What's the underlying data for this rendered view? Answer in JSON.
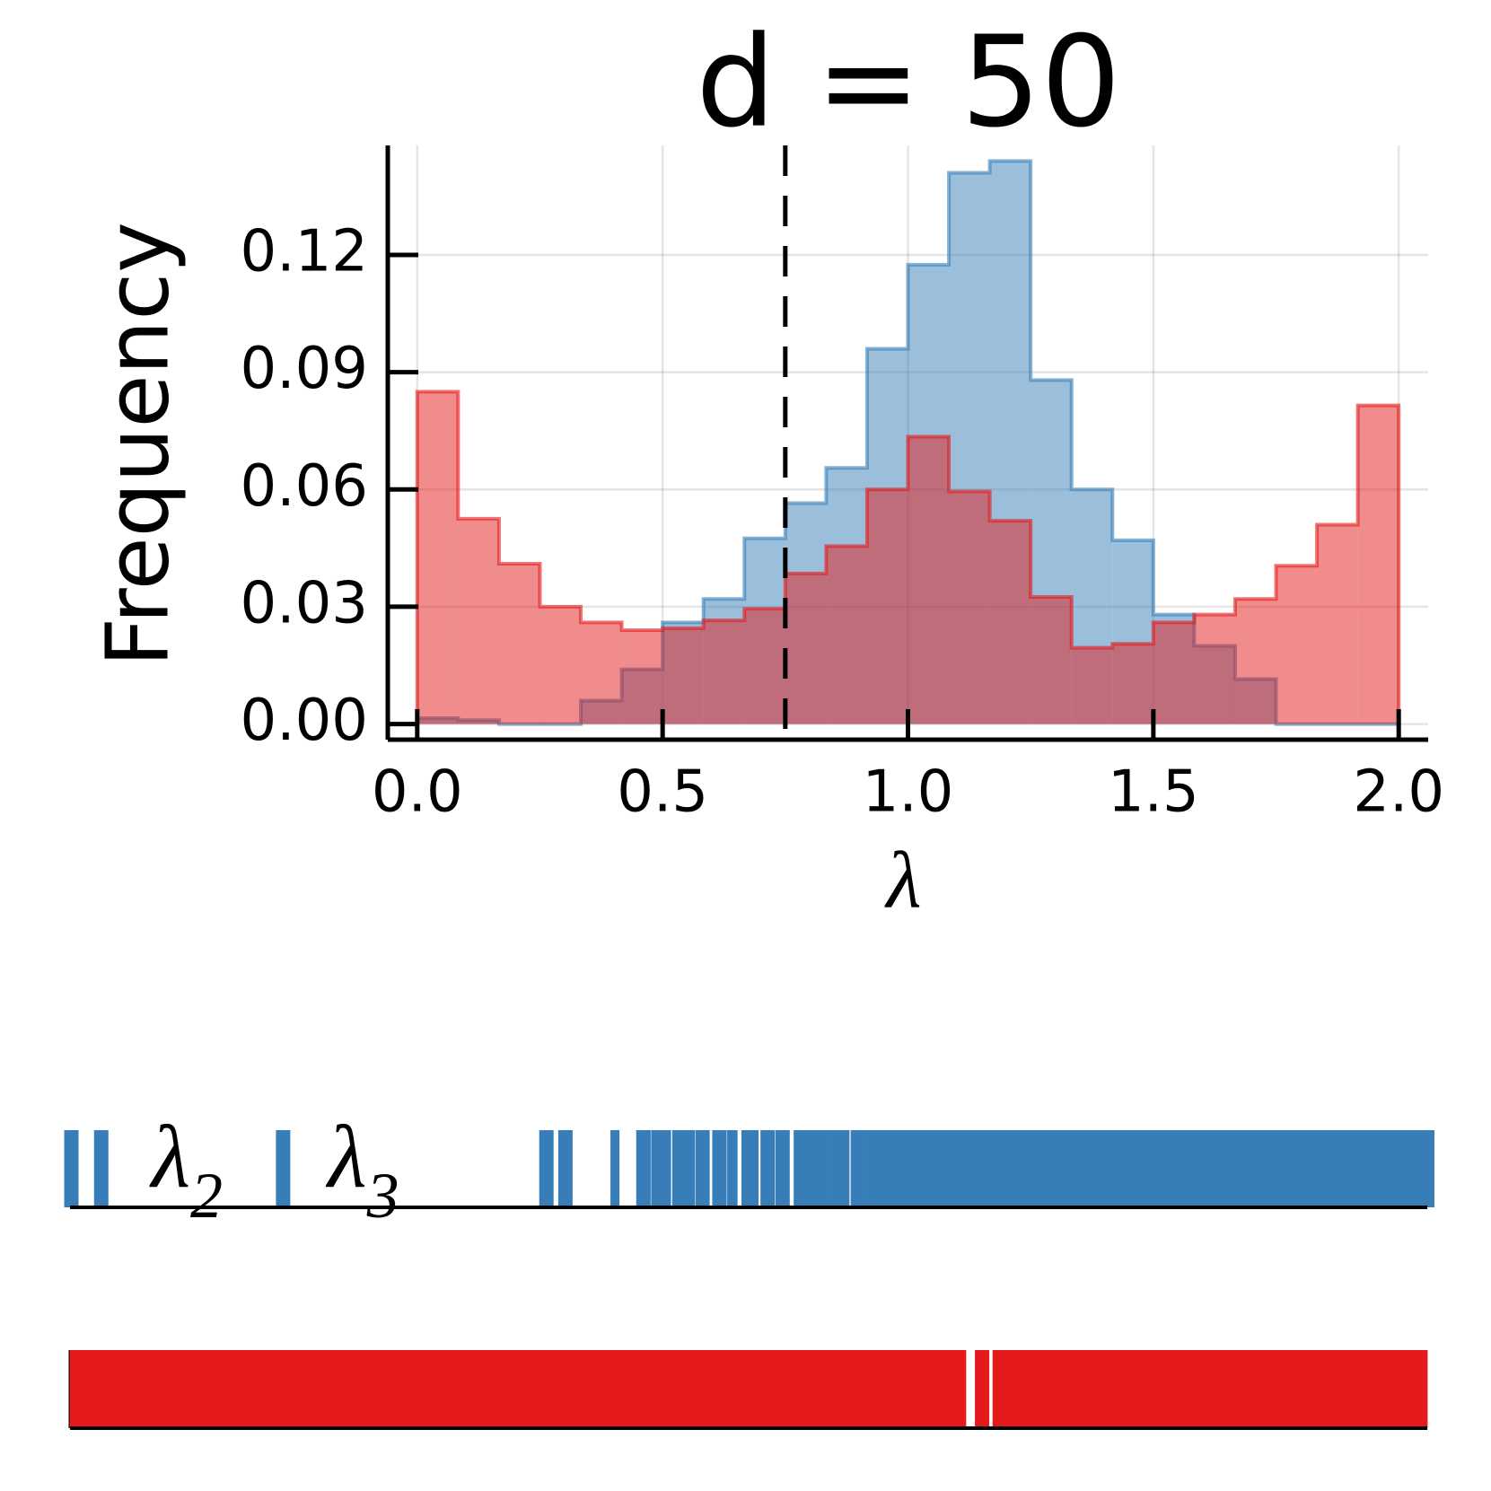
{
  "chart_data": {
    "type": "histogram",
    "title": "d = 50",
    "xlabel": "λ",
    "ylabel": "Frequency",
    "bins": [
      0,
      0.08333,
      0.16667,
      0.25,
      0.33333,
      0.41667,
      0.5,
      0.58333,
      0.66667,
      0.75,
      0.83333,
      0.91667,
      1,
      1.08333,
      1.16667,
      1.25,
      1.33333,
      1.41667,
      1.5,
      1.58333,
      1.66667,
      1.75,
      1.83333,
      1.91667,
      2
    ],
    "series": [
      {
        "color": "#377eb8",
        "values": [
          0.0015,
          0.001,
          0,
          0,
          0.006,
          0.014,
          0.026,
          0.032,
          0.0475,
          0.0565,
          0.0655,
          0.096,
          0.1175,
          0.141,
          0.144,
          0.088,
          0.06,
          0.047,
          0.028,
          0.02,
          0.0115,
          0,
          0,
          0
        ]
      },
      {
        "color": "#e41a1c",
        "values": [
          0.085,
          0.0525,
          0.041,
          0.03,
          0.026,
          0.024,
          0.0245,
          0.0265,
          0.0295,
          0.0385,
          0.0455,
          0.06,
          0.0735,
          0.0595,
          0.052,
          0.0325,
          0.0195,
          0.0205,
          0.026,
          0.028,
          0.032,
          0.0405,
          0.051,
          0.0815
        ]
      }
    ],
    "vline": 0.75,
    "xlim": [
      -0.06,
      2.06
    ],
    "ylim": [
      -0.004,
      0.148
    ],
    "xticks": [
      {
        "value": 0,
        "label": "0.0"
      },
      0.5,
      {
        "value": 1,
        "label": "1.0"
      },
      1.5,
      {
        "value": 2,
        "label": "2.0"
      }
    ],
    "yticks": [
      {
        "value": 0,
        "label": "0.00"
      },
      0.03,
      0.06,
      0.09,
      0.12
    ],
    "grid": true,
    "rugs": [
      {
        "color": "#377eb8",
        "xlim": [
          0,
          1
        ],
        "labels": [
          {
            "symbol": "λ",
            "sub": "2",
            "x": 0.06
          },
          {
            "symbol": "λ",
            "sub": "3",
            "x": 0.19
          }
        ],
        "values": [
          0.001,
          0.023,
          0.157,
          0.351,
          0.365,
          0.4,
          0.403,
          0.42,
          0.425,
          0.432,
          0.439,
          0.448,
          0.456,
          0.466,
          0.476,
          0.481,
          0.488,
          0.498,
          0.504,
          0.514,
          0.525,
          0.537,
          0.544,
          0.551,
          0.558,
          0.565,
          0.571,
          0.58,
          0.59,
          0.6,
          0.61,
          0.62,
          0.63,
          0.64,
          0.65,
          0.66,
          0.67,
          0.68,
          0.69,
          0.7,
          0.71,
          0.72,
          0.73,
          0.74,
          0.75,
          0.76,
          0.77,
          0.78,
          0.79,
          0.8,
          0.81,
          0.82,
          0.83,
          0.84,
          0.85,
          0.86,
          0.87,
          0.88,
          0.89,
          0.9,
          0.91,
          0.92,
          0.93,
          0.94,
          0.95,
          0.96,
          0.97,
          0.98,
          0.99,
          1
        ]
      },
      {
        "color": "#e41a1c",
        "xlim": [
          0,
          1
        ],
        "values": [
          0.005,
          0.015,
          0.025,
          0.035,
          0.045,
          0.055,
          0.065,
          0.075,
          0.085,
          0.095,
          0.105,
          0.115,
          0.125,
          0.135,
          0.145,
          0.155,
          0.165,
          0.175,
          0.185,
          0.195,
          0.205,
          0.215,
          0.225,
          0.235,
          0.245,
          0.255,
          0.265,
          0.275,
          0.285,
          0.295,
          0.305,
          0.315,
          0.325,
          0.335,
          0.345,
          0.355,
          0.365,
          0.375,
          0.385,
          0.395,
          0.405,
          0.415,
          0.425,
          0.435,
          0.445,
          0.455,
          0.465,
          0.475,
          0.485,
          0.495,
          0.505,
          0.515,
          0.525,
          0.535,
          0.545,
          0.555,
          0.565,
          0.575,
          0.585,
          0.595,
          0.605,
          0.615,
          0.625,
          0.635,
          0.645,
          0.655,
          0.672,
          0.685,
          0.695,
          0.705,
          0.715,
          0.725,
          0.735,
          0.745,
          0.755,
          0.765,
          0.775,
          0.785,
          0.795,
          0.805,
          0.815,
          0.825,
          0.835,
          0.845,
          0.855,
          0.865,
          0.875,
          0.885,
          0.895,
          0.905,
          0.915,
          0.925,
          0.935,
          0.945,
          0.955,
          0.965,
          0.975,
          0.985,
          0.995
        ]
      }
    ]
  }
}
